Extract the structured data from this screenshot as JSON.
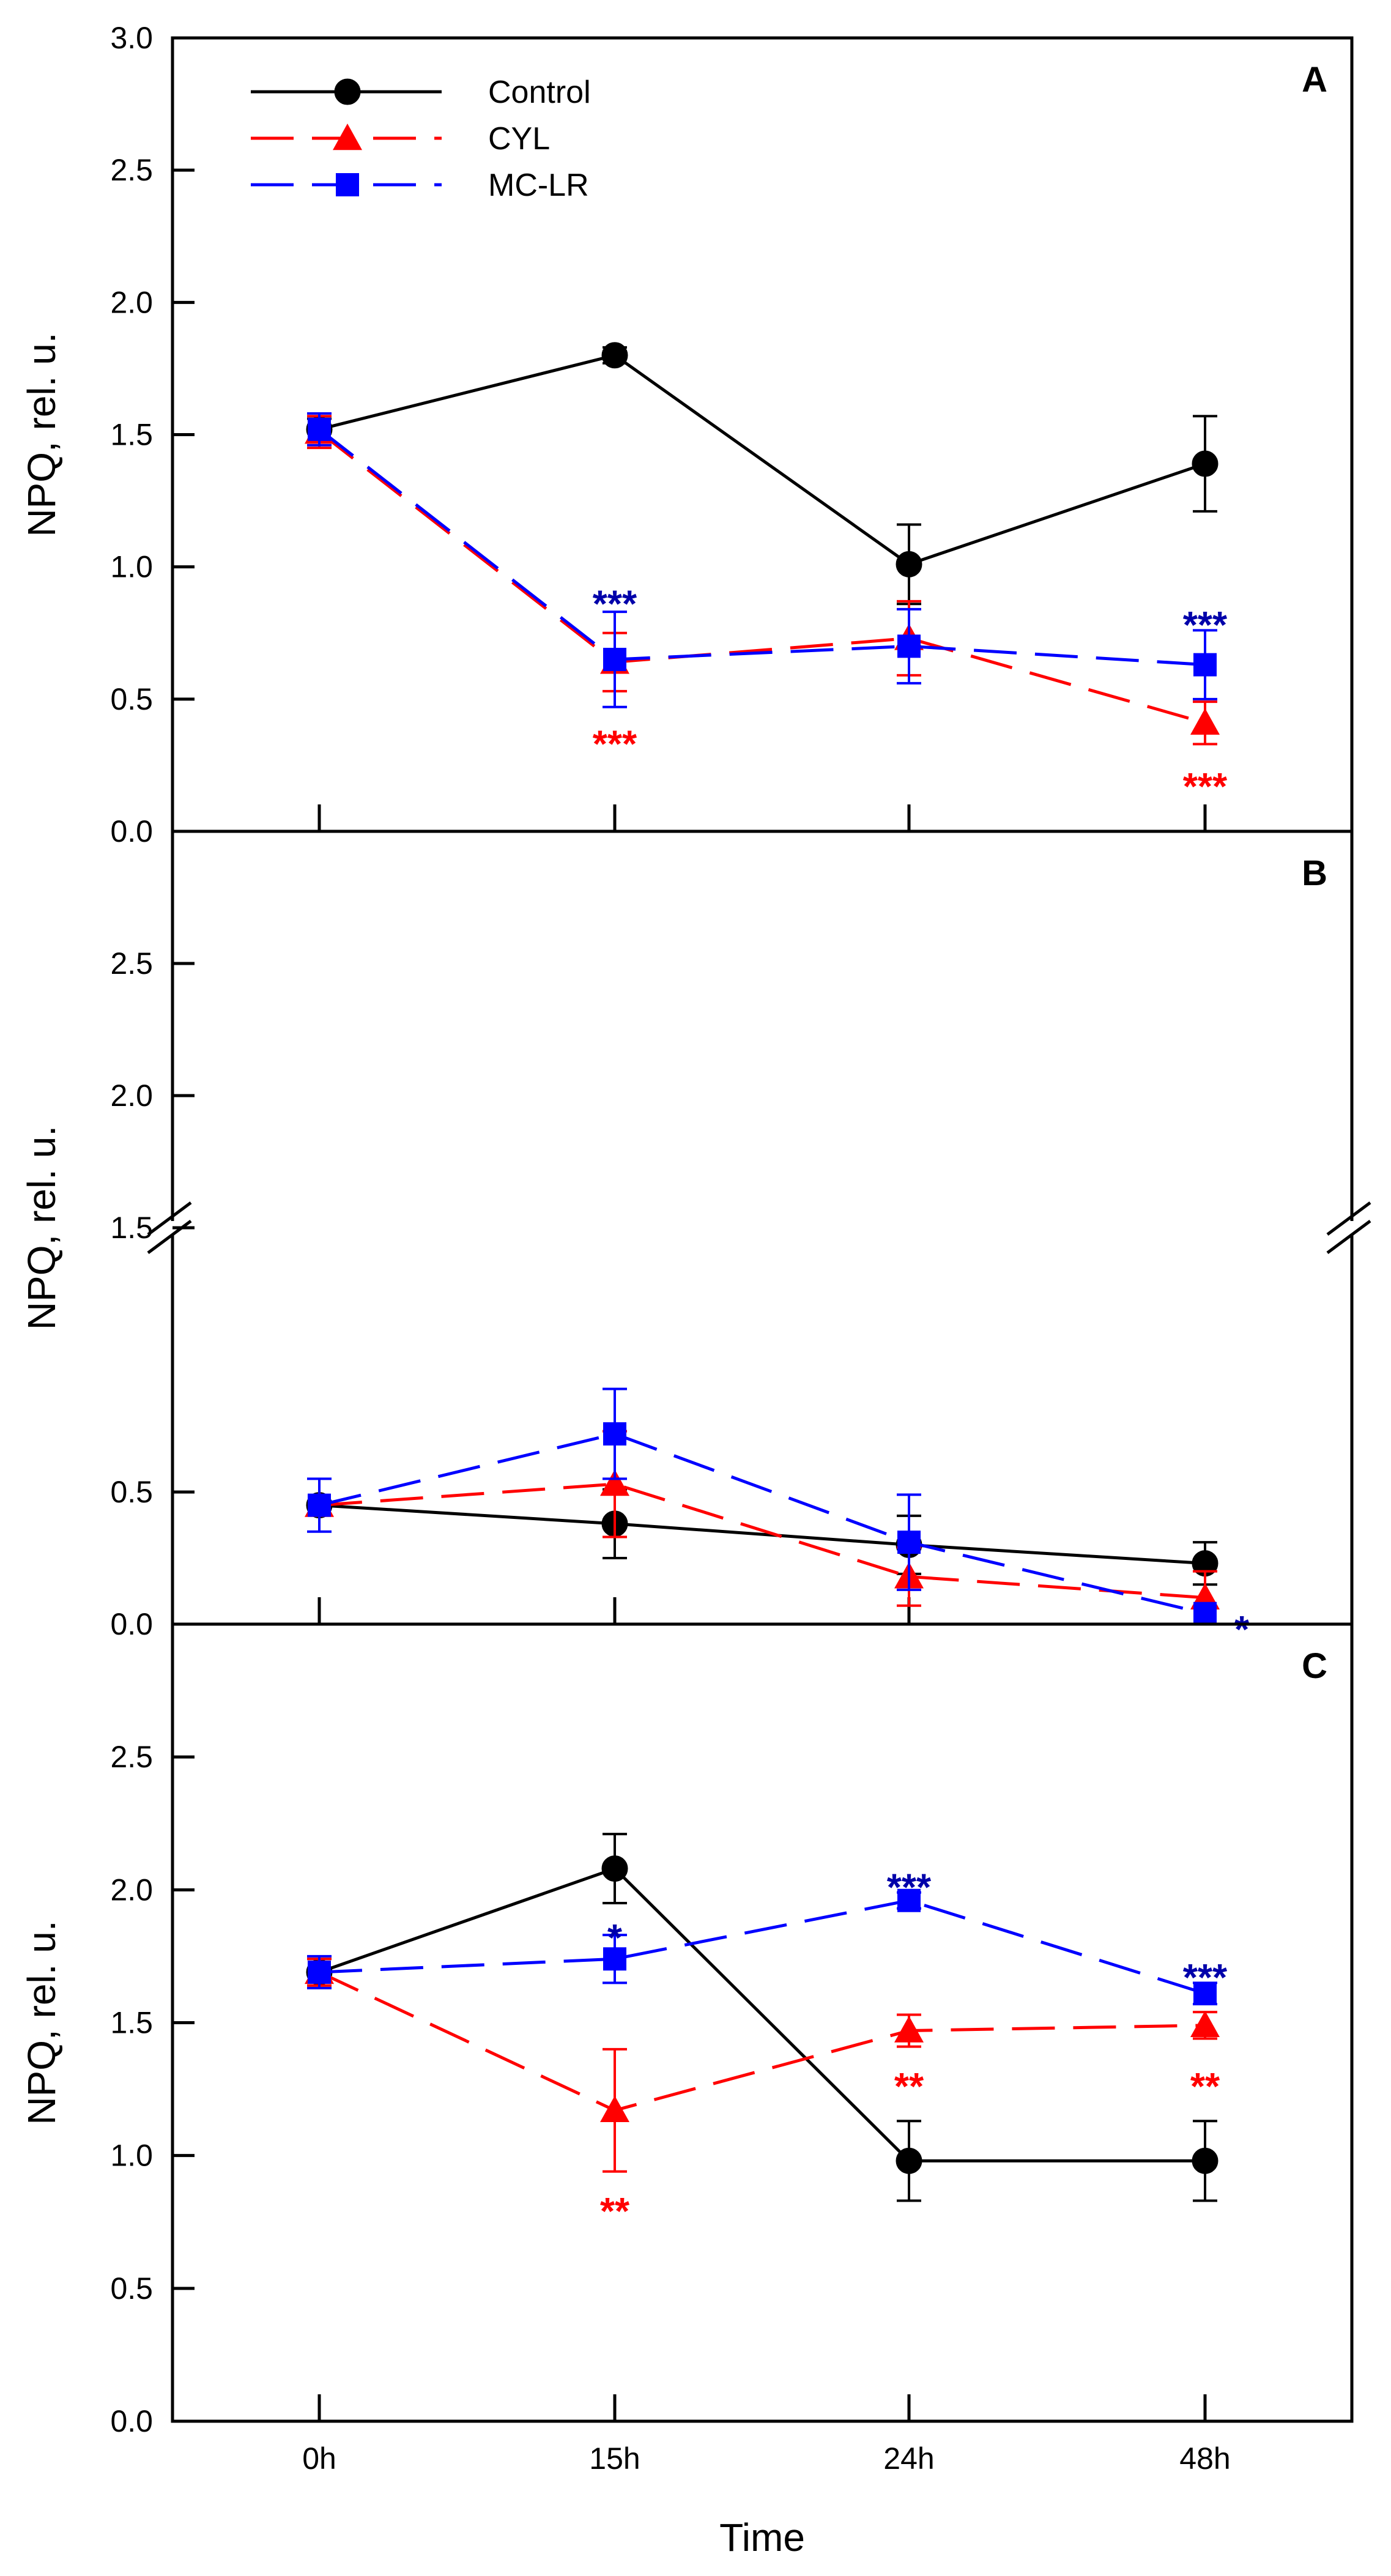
{
  "chart_data": {
    "type": "line",
    "x_title": "Time",
    "y_title": "NPQ, rel. u.",
    "categories": [
      "0h",
      "15h",
      "24h",
      "48h"
    ],
    "legend": [
      {
        "name": "Control",
        "marker": "circle",
        "color": "#000000",
        "dash": "solid"
      },
      {
        "name": "CYL",
        "marker": "triangle",
        "color": "#ff0000",
        "dash": "dashed"
      },
      {
        "name": "MC-LR",
        "marker": "square",
        "color": "#0000ff",
        "dash": "dashed"
      }
    ],
    "panels": [
      {
        "id": "A",
        "ylim": [
          0,
          3.0
        ],
        "yticks": [
          0.0,
          0.5,
          1.0,
          1.5,
          2.0,
          2.5,
          3.0
        ],
        "ytick_labels": [
          "0.0",
          "0.5",
          "1.0",
          "1.5",
          "2.0",
          "2.5",
          "3.0"
        ],
        "series": [
          {
            "name": "Control",
            "values": [
              1.52,
              1.8,
              1.01,
              1.39
            ],
            "errors": [
              0.04,
              0.03,
              0.15,
              0.18
            ]
          },
          {
            "name": "CYL",
            "values": [
              1.51,
              0.64,
              0.73,
              0.41
            ],
            "errors": [
              0.06,
              0.11,
              0.14,
              0.08
            ]
          },
          {
            "name": "MC-LR",
            "values": [
              1.52,
              0.65,
              0.7,
              0.63
            ],
            "errors": [
              0.06,
              0.18,
              0.14,
              0.13
            ]
          }
        ],
        "annotations": [
          {
            "text": "***",
            "x": "15h",
            "y": 0.88,
            "color": "#0000aa"
          },
          {
            "text": "***",
            "x": "15h",
            "y": 0.35,
            "color": "#ff0000"
          },
          {
            "text": "***",
            "x": "48h",
            "y": 0.8,
            "color": "#0000aa"
          },
          {
            "text": "***",
            "x": "48h",
            "y": 0.19,
            "color": "#ff0000"
          }
        ]
      },
      {
        "id": "B",
        "axis_break": true,
        "ylim": [
          0,
          3.0
        ],
        "yticks": [
          0.0,
          0.5,
          1.5,
          2.0,
          2.5
        ],
        "ytick_labels": [
          "0.0",
          "0.5",
          "1.5",
          "2.0",
          "2.5"
        ],
        "series": [
          {
            "name": "Control",
            "values": [
              0.45,
              0.38,
              0.3,
              0.23
            ],
            "errors": [
              0.0,
              0.13,
              0.11,
              0.08
            ]
          },
          {
            "name": "CYL",
            "values": [
              0.45,
              0.53,
              0.18,
              0.1
            ],
            "errors": [
              0.0,
              0.2,
              0.11,
              0.1
            ]
          },
          {
            "name": "MC-LR",
            "values": [
              0.45,
              0.72,
              0.31,
              0.04
            ],
            "errors": [
              0.1,
              0.17,
              0.18,
              0.0
            ]
          }
        ],
        "annotations": [
          {
            "text": "*",
            "x": "48h",
            "y": 0.0,
            "color": "#0000aa"
          }
        ]
      },
      {
        "id": "C",
        "ylim": [
          0,
          3.0
        ],
        "yticks": [
          0.0,
          0.5,
          1.0,
          1.5,
          2.0,
          2.5
        ],
        "ytick_labels": [
          "0.0",
          "0.5",
          "1.0",
          "1.5",
          "2.0",
          "2.5"
        ],
        "series": [
          {
            "name": "Control",
            "values": [
              1.69,
              2.08,
              0.98,
              0.98
            ],
            "errors": [
              0.05,
              0.13,
              0.15,
              0.15
            ]
          },
          {
            "name": "CYL",
            "values": [
              1.69,
              1.17,
              1.47,
              1.49
            ],
            "errors": [
              0.05,
              0.23,
              0.06,
              0.05
            ]
          },
          {
            "name": "MC-LR",
            "values": [
              1.69,
              1.74,
              1.96,
              1.61
            ],
            "errors": [
              0.06,
              0.09,
              0.03,
              0.04
            ]
          }
        ],
        "annotations": [
          {
            "text": "*",
            "x": "15h",
            "y": 1.84,
            "color": "#0000aa"
          },
          {
            "text": "**",
            "x": "15h",
            "y": 0.81,
            "color": "#ff0000"
          },
          {
            "text": "***",
            "x": "24h",
            "y": 2.03,
            "color": "#0000aa"
          },
          {
            "text": "**",
            "x": "24h",
            "y": 1.28,
            "color": "#ff0000"
          },
          {
            "text": "***",
            "x": "48h",
            "y": 1.69,
            "color": "#0000aa"
          },
          {
            "text": "**",
            "x": "48h",
            "y": 1.28,
            "color": "#ff0000"
          }
        ]
      }
    ]
  }
}
